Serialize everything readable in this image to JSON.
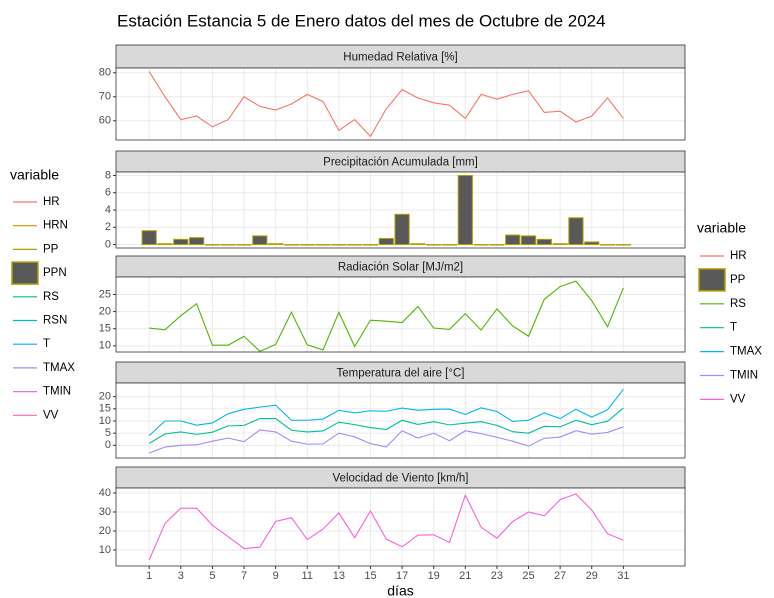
{
  "title": "Estación Estancia 5 de Enero datos del mes de Octubre de 2024",
  "legends": [
    {
      "title": "variable",
      "items": [
        {
          "name": "HR",
          "color": "#F8766D",
          "key": "line"
        },
        {
          "name": "HRN",
          "color": "#D89000",
          "key": "line"
        },
        {
          "name": "PP",
          "color": "#A3A500",
          "key": "line"
        },
        {
          "name": "PPN",
          "color": "#595959",
          "edge_color": "#B79F00",
          "key": "box"
        },
        {
          "name": "RS",
          "color": "#00BF7D",
          "key": "line"
        },
        {
          "name": "RSN",
          "color": "#00BFC4",
          "key": "line"
        },
        {
          "name": "T",
          "color": "#00B0F6",
          "key": "line"
        },
        {
          "name": "TMAX",
          "color": "#9590FF",
          "key": "line"
        },
        {
          "name": "TMIN",
          "color": "#E76BF3",
          "key": "line"
        },
        {
          "name": "VV",
          "color": "#FF62BC",
          "key": "line"
        }
      ]
    },
    {
      "title": "variable",
      "items": [
        {
          "name": "HR",
          "color": "#F8766D",
          "key": "line"
        },
        {
          "name": "PP",
          "color": "#595959",
          "edge_color": "#B79F00",
          "key": "box"
        },
        {
          "name": "RS",
          "color": "#53B400",
          "key": "line"
        },
        {
          "name": "T",
          "color": "#00C094",
          "key": "line"
        },
        {
          "name": "TMAX",
          "color": "#00B6EB",
          "key": "line"
        },
        {
          "name": "TMIN",
          "color": "#A58AFF",
          "key": "line"
        },
        {
          "name": "VV",
          "color": "#FB61D7",
          "key": "line"
        }
      ]
    }
  ],
  "chart_data": [
    {
      "type": "line",
      "title": "Humedad Relativa [%]",
      "x": [
        1,
        2,
        3,
        4,
        5,
        6,
        7,
        8,
        9,
        10,
        11,
        12,
        13,
        14,
        15,
        16,
        17,
        18,
        19,
        20,
        21,
        22,
        23,
        24,
        25,
        26,
        27,
        28,
        29,
        30,
        31
      ],
      "xlim": [
        -1.1,
        34.9
      ],
      "xticks": [
        1,
        3,
        5,
        7,
        9,
        11,
        13,
        15,
        17,
        19,
        21,
        23,
        25,
        27,
        29,
        31
      ],
      "ylim": [
        52,
        82
      ],
      "yticks": [
        60,
        70,
        80
      ],
      "grid": true,
      "series": [
        {
          "name": "HR",
          "color": "#F8766D",
          "values": [
            80.5,
            70,
            60.5,
            62,
            57.5,
            60.5,
            70,
            66,
            64.5,
            67,
            71,
            68,
            56,
            60.5,
            53.5,
            65,
            73,
            69.5,
            67.5,
            66.5,
            61,
            71,
            69,
            71,
            72.5,
            63.5,
            64,
            59.5,
            62,
            69.5,
            61
          ]
        }
      ]
    },
    {
      "type": "bar",
      "title": "Precipitación Acumulada [mm]",
      "x": [
        1,
        2,
        3,
        4,
        5,
        6,
        7,
        8,
        9,
        10,
        11,
        12,
        13,
        14,
        15,
        16,
        17,
        18,
        19,
        20,
        21,
        22,
        23,
        24,
        25,
        26,
        27,
        28,
        29,
        30,
        31
      ],
      "xlim": [
        -1.1,
        34.9
      ],
      "xticks": [
        1,
        3,
        5,
        7,
        9,
        11,
        13,
        15,
        17,
        19,
        21,
        23,
        25,
        27,
        29,
        31
      ],
      "ylim": [
        -0.4,
        8.4
      ],
      "yticks": [
        0,
        2,
        4,
        6,
        8
      ],
      "grid": true,
      "series": [
        {
          "name": "PP",
          "color": "#595959",
          "edge_color": "#B79F00",
          "values": [
            1.6,
            0.1,
            0.6,
            0.8,
            0,
            0,
            0,
            1.0,
            0.1,
            0,
            0,
            0,
            0,
            0,
            0,
            0.7,
            3.5,
            0.1,
            0,
            0,
            8.0,
            0,
            0,
            1.1,
            1.0,
            0.6,
            0.1,
            3.1,
            0.3,
            0,
            0
          ]
        }
      ]
    },
    {
      "type": "line",
      "title": "Radiación Solar [MJ/m2]",
      "x": [
        1,
        2,
        3,
        4,
        5,
        6,
        7,
        8,
        9,
        10,
        11,
        12,
        13,
        14,
        15,
        16,
        17,
        18,
        19,
        20,
        21,
        22,
        23,
        24,
        25,
        26,
        27,
        28,
        29,
        30,
        31
      ],
      "xlim": [
        -1.1,
        34.9
      ],
      "xticks": [
        1,
        3,
        5,
        7,
        9,
        11,
        13,
        15,
        17,
        19,
        21,
        23,
        25,
        27,
        29,
        31
      ],
      "ylim": [
        8.2,
        30.1
      ],
      "yticks": [
        10,
        15,
        20,
        25
      ],
      "grid": true,
      "series": [
        {
          "name": "RS",
          "color": "#53B400",
          "values": [
            15.2,
            14.7,
            18.8,
            22.3,
            10.2,
            10.2,
            12.8,
            8.4,
            10.4,
            19.8,
            10.3,
            8.8,
            19.8,
            9.8,
            17.5,
            17.2,
            16.8,
            21.5,
            15.2,
            14.8,
            19.4,
            14.6,
            20.8,
            15.8,
            12.8,
            23.6,
            27.3,
            28.9,
            23.2,
            15.6,
            26.9
          ]
        }
      ]
    },
    {
      "type": "line",
      "title": "Temperatura del aire [°C]",
      "x": [
        1,
        2,
        3,
        4,
        5,
        6,
        7,
        8,
        9,
        10,
        11,
        12,
        13,
        14,
        15,
        16,
        17,
        18,
        19,
        20,
        21,
        22,
        23,
        24,
        25,
        26,
        27,
        28,
        29,
        30,
        31
      ],
      "xlim": [
        -1.1,
        34.9
      ],
      "xticks": [
        1,
        3,
        5,
        7,
        9,
        11,
        13,
        15,
        17,
        19,
        21,
        23,
        25,
        27,
        29,
        31
      ],
      "ylim": [
        -5.2,
        25.6
      ],
      "yticks": [
        0,
        5,
        10,
        15,
        20
      ],
      "grid": true,
      "series": [
        {
          "name": "T",
          "color": "#00C094",
          "values": [
            0.8,
            4.7,
            5.5,
            4.5,
            5.4,
            8,
            8.2,
            11,
            11,
            6.2,
            5.5,
            5.9,
            9.5,
            8.5,
            7.3,
            6.5,
            10.3,
            8.6,
            9.7,
            8.4,
            9.1,
            9.7,
            8.2,
            5.6,
            5,
            7.8,
            7.6,
            10.3,
            8.5,
            9.9,
            15.3
          ]
        },
        {
          "name": "TMAX",
          "color": "#00B6EB",
          "values": [
            4,
            10,
            10,
            8.3,
            9.2,
            13,
            14.8,
            15.7,
            16.5,
            10.3,
            10.3,
            10.8,
            14.4,
            13.3,
            14.2,
            14,
            15.3,
            14.4,
            14.8,
            14.9,
            12.7,
            15.4,
            13.9,
            9.8,
            10.3,
            13.3,
            11,
            14.8,
            11.6,
            14.6,
            23
          ]
        },
        {
          "name": "TMIN",
          "color": "#A58AFF",
          "values": [
            -3.2,
            -0.7,
            0,
            0.2,
            1.7,
            3,
            1.5,
            6.3,
            5.5,
            1.7,
            0.5,
            0.6,
            5,
            3.5,
            0.7,
            -0.7,
            6,
            3,
            5,
            1.9,
            6,
            4.8,
            3.3,
            1.7,
            -0.3,
            2.9,
            3.4,
            6,
            4.6,
            5.3,
            7.6
          ]
        }
      ]
    },
    {
      "type": "line",
      "title": "Velocidad de Viento [km/h]",
      "xlabel": "días",
      "x": [
        1,
        2,
        3,
        4,
        5,
        6,
        7,
        8,
        9,
        10,
        11,
        12,
        13,
        14,
        15,
        16,
        17,
        18,
        19,
        20,
        21,
        22,
        23,
        24,
        25,
        26,
        27,
        28,
        29,
        30,
        31
      ],
      "xlim": [
        -1.1,
        34.9
      ],
      "xticks": [
        1,
        3,
        5,
        7,
        9,
        11,
        13,
        15,
        17,
        19,
        21,
        23,
        25,
        27,
        29,
        31
      ],
      "ylim": [
        1.6,
        42.6
      ],
      "yticks": [
        10,
        20,
        30,
        40
      ],
      "grid": true,
      "series": [
        {
          "name": "VV",
          "color": "#FB61D7",
          "values": [
            4.8,
            24,
            32,
            32,
            23,
            17,
            10.8,
            11.5,
            25,
            27,
            15.5,
            21,
            29.5,
            16.5,
            30.5,
            15.7,
            11.7,
            17.8,
            18,
            14,
            38.8,
            22,
            16.2,
            25,
            30,
            28,
            36.5,
            39.5,
            31,
            18.5,
            15.2
          ]
        }
      ]
    }
  ]
}
